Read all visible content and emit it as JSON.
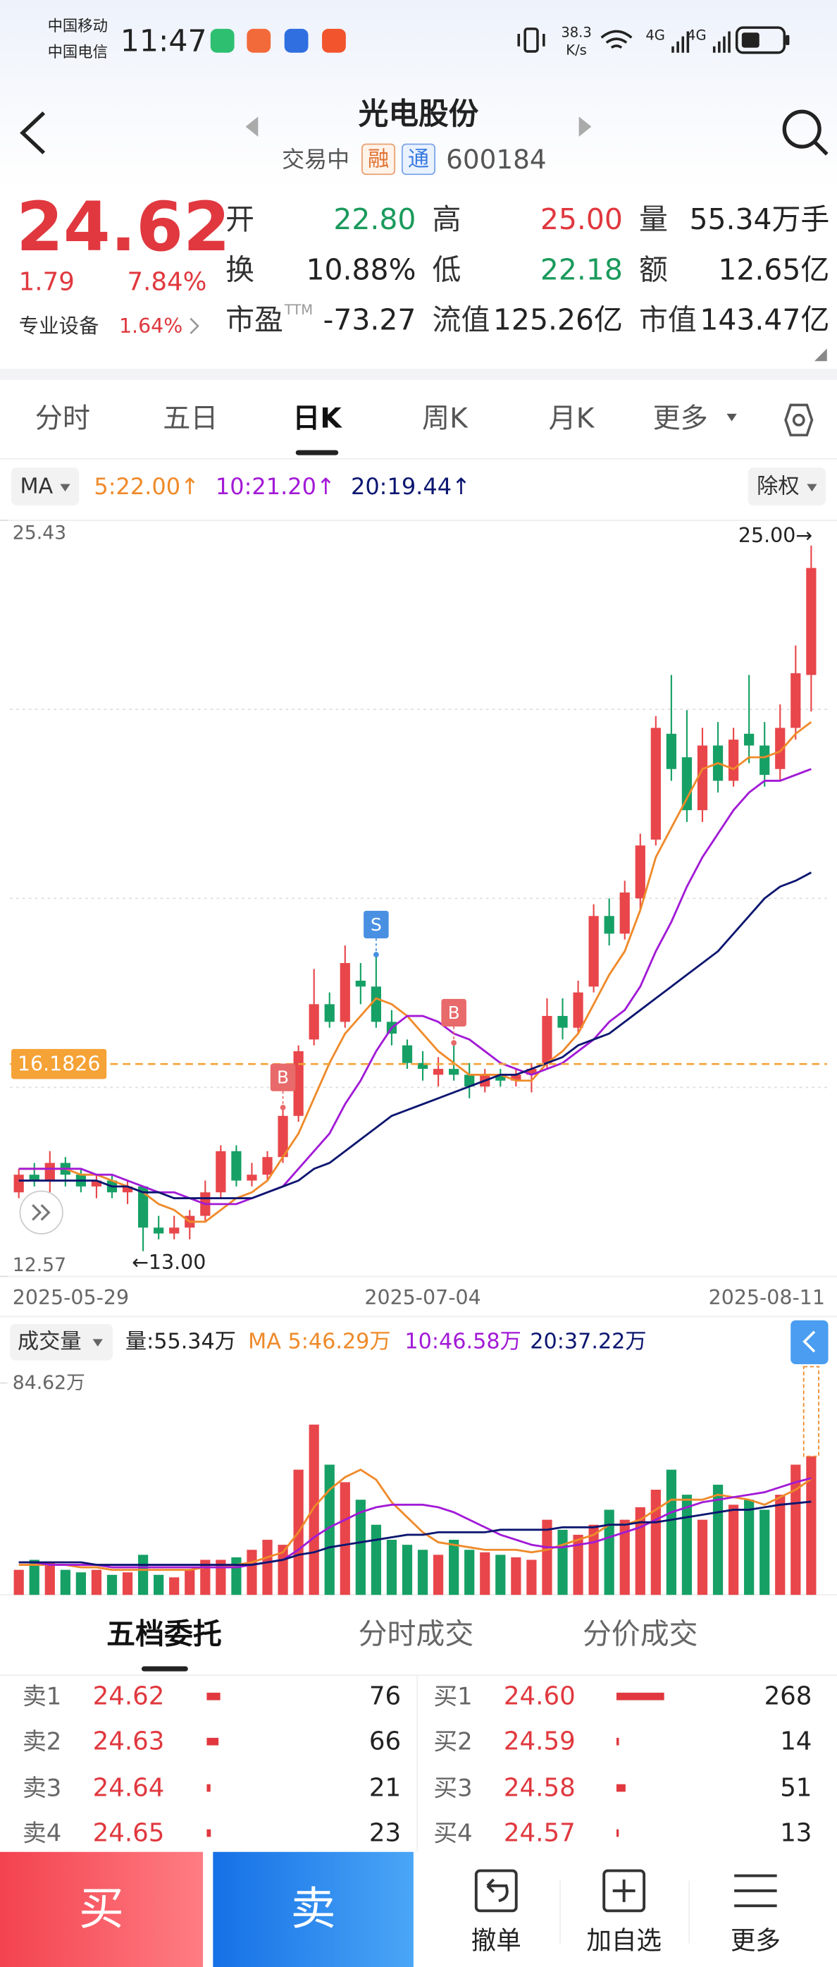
{
  "status_bar": {
    "carriers": [
      "中国移动",
      "中国电信"
    ],
    "time": "11:47",
    "net_speed": "38.3",
    "net_speed_unit": "K/s",
    "networks": [
      "4G",
      "4G"
    ]
  },
  "header": {
    "title": "光电股份",
    "status": "交易中",
    "badges": [
      "融",
      "通"
    ],
    "code": "600184"
  },
  "quote": {
    "price": "24.62",
    "change": "1.79",
    "change_percent": "7.84%",
    "sector": "专业设备",
    "sector_change": "1.64%",
    "color": "#e0383e",
    "fields": [
      {
        "label": "开",
        "value": "22.80",
        "color": "#1a9a5c"
      },
      {
        "label": "高",
        "value": "25.00",
        "color": "#e0383e"
      },
      {
        "label": "量",
        "value": "55.34万手",
        "color": "#222222"
      },
      {
        "label": "换",
        "value": "10.88%",
        "color": "#222222"
      },
      {
        "label": "低",
        "value": "22.18",
        "color": "#1a9a5c"
      },
      {
        "label": "额",
        "value": "12.65亿",
        "color": "#222222"
      },
      {
        "label": "市盈",
        "sup": "TTM",
        "value": "-73.27",
        "color": "#222222"
      },
      {
        "label": "流值",
        "value": "125.26亿",
        "color": "#222222"
      },
      {
        "label": "市值",
        "value": "143.47亿",
        "color": "#222222"
      }
    ]
  },
  "tabs": {
    "items": [
      "分时",
      "五日",
      "日K",
      "周K",
      "月K",
      "更多"
    ],
    "active": 2
  },
  "chart_data": [
    {
      "type": "candlestick",
      "indicator": "MA",
      "adjustment": "除权",
      "categories": [
        "2025-05-29",
        null,
        null,
        null,
        null,
        null,
        null,
        null,
        null,
        null,
        null,
        null,
        null,
        null,
        null,
        null,
        null,
        null,
        null,
        null,
        null,
        null,
        null,
        null,
        null,
        null,
        "2025-07-04",
        null,
        null,
        null,
        null,
        null,
        null,
        null,
        null,
        null,
        null,
        null,
        null,
        null,
        null,
        null,
        null,
        null,
        null,
        null,
        null,
        null,
        null,
        null,
        null,
        "2025-08-11"
      ],
      "open": [
        14.0,
        14.3,
        14.2,
        14.5,
        14.3,
        14.1,
        14.2,
        14.0,
        14.1,
        13.4,
        13.3,
        13.4,
        13.6,
        14.0,
        14.7,
        14.2,
        14.3,
        14.6,
        15.3,
        16.6,
        17.2,
        16.9,
        17.6,
        17.5,
        16.9,
        16.5,
        16.2,
        16.0,
        16.1,
        16.0,
        15.8,
        16.0,
        15.9,
        16.0,
        16.2,
        17.0,
        16.8,
        17.5,
        18.7,
        18.4,
        19.0,
        20.0,
        21.8,
        21.4,
        20.5,
        21.6,
        21.0,
        21.8,
        21.6,
        21.2,
        21.9,
        22.8
      ],
      "high": [
        14.4,
        14.5,
        14.7,
        14.6,
        14.4,
        14.3,
        14.3,
        14.2,
        14.1,
        13.6,
        13.6,
        13.7,
        14.2,
        14.8,
        14.8,
        14.5,
        14.7,
        15.4,
        16.5,
        17.8,
        17.4,
        18.2,
        17.9,
        18.0,
        17.1,
        16.6,
        16.4,
        16.3,
        16.5,
        16.2,
        16.1,
        16.1,
        16.1,
        16.2,
        17.3,
        17.3,
        17.6,
        18.9,
        19.0,
        19.3,
        20.1,
        22.1,
        22.8,
        22.2,
        21.9,
        22.0,
        21.9,
        22.8,
        22.0,
        22.3,
        23.3,
        25.0
      ],
      "low": [
        13.9,
        14.1,
        14.0,
        14.1,
        14.0,
        13.9,
        13.9,
        13.8,
        13.0,
        13.2,
        13.2,
        13.2,
        13.5,
        13.9,
        14.1,
        14.1,
        14.2,
        14.5,
        15.2,
        16.5,
        16.8,
        16.8,
        17.2,
        16.8,
        16.5,
        16.1,
        15.9,
        15.8,
        15.9,
        15.6,
        15.7,
        15.8,
        15.8,
        15.7,
        16.1,
        16.6,
        16.7,
        17.4,
        18.2,
        18.3,
        18.8,
        19.9,
        21.0,
        20.3,
        20.3,
        20.8,
        20.9,
        21.3,
        20.9,
        21.0,
        21.7,
        22.18
      ],
      "close": [
        14.3,
        14.2,
        14.5,
        14.3,
        14.1,
        14.2,
        14.0,
        14.1,
        13.4,
        13.3,
        13.4,
        13.6,
        14.0,
        14.7,
        14.2,
        14.3,
        14.6,
        15.3,
        16.4,
        17.2,
        16.9,
        17.9,
        17.5,
        16.9,
        16.7,
        16.2,
        16.1,
        16.1,
        16.0,
        15.8,
        16.0,
        15.9,
        16.0,
        16.1,
        17.0,
        16.8,
        17.4,
        18.7,
        18.4,
        19.1,
        19.9,
        21.9,
        21.2,
        20.5,
        21.6,
        21.0,
        21.7,
        21.6,
        21.1,
        21.9,
        22.83,
        24.62
      ],
      "up_color": "#e8464a",
      "down_color": "#16a065",
      "series": [
        {
          "name": "5:22.00↑",
          "color": "#ef8a2a",
          "values": [
            14.4,
            14.4,
            14.4,
            14.4,
            14.3,
            14.3,
            14.2,
            14.1,
            14.0,
            13.8,
            13.7,
            13.5,
            13.5,
            13.7,
            13.9,
            14.0,
            14.2,
            14.6,
            15.0,
            15.6,
            16.2,
            16.7,
            17.0,
            17.3,
            17.2,
            17.0,
            16.7,
            16.4,
            16.2,
            16.0,
            16.0,
            16.0,
            15.9,
            15.9,
            16.2,
            16.4,
            16.7,
            17.2,
            17.7,
            18.1,
            18.8,
            19.7,
            20.2,
            20.7,
            21.2,
            21.3,
            21.2,
            21.4,
            21.4,
            21.5,
            21.8,
            22.0
          ]
        },
        {
          "name": "10:21.20↑",
          "color": "#a21ad6",
          "values": [
            14.4,
            14.4,
            14.4,
            14.4,
            14.4,
            14.3,
            14.3,
            14.2,
            14.1,
            14.0,
            14.0,
            13.9,
            13.8,
            13.8,
            13.8,
            13.9,
            14.0,
            14.1,
            14.4,
            14.7,
            15.0,
            15.5,
            15.9,
            16.4,
            16.8,
            17.0,
            17.0,
            16.9,
            16.7,
            16.6,
            16.4,
            16.2,
            16.1,
            16.0,
            16.1,
            16.2,
            16.4,
            16.6,
            16.9,
            17.1,
            17.5,
            18.1,
            18.6,
            19.2,
            19.7,
            20.1,
            20.5,
            20.8,
            21.0,
            21.0,
            21.1,
            21.2
          ]
        },
        {
          "name": "20:19.44↑",
          "color": "#0c1670",
          "values": [
            14.2,
            14.2,
            14.2,
            14.2,
            14.2,
            14.2,
            14.1,
            14.1,
            14.0,
            14.0,
            13.9,
            13.9,
            13.9,
            13.9,
            13.9,
            13.9,
            14.0,
            14.1,
            14.2,
            14.4,
            14.5,
            14.7,
            14.9,
            15.1,
            15.3,
            15.4,
            15.5,
            15.6,
            15.7,
            15.8,
            15.9,
            16.0,
            16.0,
            16.1,
            16.2,
            16.3,
            16.5,
            16.6,
            16.7,
            16.9,
            17.1,
            17.3,
            17.5,
            17.7,
            17.9,
            18.1,
            18.4,
            18.7,
            19.0,
            19.2,
            19.3,
            19.44
          ]
        }
      ],
      "ylim": [
        12.57,
        25.43
      ],
      "yticks": [
        12.57,
        25.43
      ],
      "reference_line": {
        "value": 16.1826,
        "color": "#f5a236"
      },
      "annotations": {
        "max": "25.00→",
        "min": "←13.00"
      },
      "trade_marks": [
        {
          "label": "B",
          "index": 17,
          "color": "#e86a6a"
        },
        {
          "label": "S",
          "index": 23,
          "color": "#4a90e2"
        },
        {
          "label": "B",
          "index": 28,
          "color": "#e86a6a"
        }
      ]
    },
    {
      "type": "bar",
      "title": "成交量",
      "current": "量:55.34万",
      "values": [
        10,
        14,
        13,
        10,
        9,
        10,
        8,
        9,
        16,
        8,
        7,
        10,
        14,
        14,
        15,
        18,
        22,
        20,
        50,
        68,
        52,
        45,
        38,
        28,
        22,
        20,
        18,
        16,
        22,
        18,
        17,
        16,
        15,
        14,
        30,
        26,
        24,
        28,
        34,
        30,
        35,
        42,
        50,
        40,
        30,
        44,
        36,
        38,
        34,
        40,
        52,
        55.34
      ],
      "series": [
        {
          "name": "MA 5:46.29万",
          "color": "#ef8a2a",
          "values": [
            12,
            12,
            12,
            12,
            11,
            11,
            10,
            10,
            10,
            10,
            10,
            10,
            11,
            11,
            12,
            13,
            15,
            17,
            25,
            35,
            42,
            47,
            50,
            46,
            37,
            31,
            25,
            21,
            20,
            19,
            18,
            18,
            18,
            17,
            18,
            20,
            22,
            24,
            28,
            28,
            30,
            34,
            38,
            38,
            38,
            40,
            39,
            38,
            36,
            39,
            42,
            46.29
          ]
        },
        {
          "name": "10:46.58万",
          "color": "#a21ad6",
          "values": [
            13,
            13,
            12,
            12,
            12,
            12,
            11,
            11,
            11,
            11,
            11,
            11,
            11,
            11,
            11,
            12,
            13,
            14,
            18,
            23,
            27,
            30,
            33,
            35,
            36,
            36,
            36,
            35,
            33,
            30,
            27,
            24,
            22,
            20,
            19,
            19,
            20,
            21,
            23,
            25,
            27,
            30,
            33,
            35,
            37,
            38,
            39,
            40,
            41,
            43,
            45,
            46.58
          ]
        },
        {
          "name": "20:37.22万",
          "color": "#0c1670",
          "values": [
            13,
            13,
            13,
            13,
            13,
            12,
            12,
            12,
            12,
            12,
            12,
            12,
            12,
            12,
            12,
            12,
            13,
            14,
            16,
            17,
            19,
            20,
            21,
            22,
            23,
            24,
            24,
            25,
            25,
            25,
            25,
            26,
            26,
            26,
            26,
            27,
            27,
            27,
            28,
            28,
            29,
            29,
            30,
            31,
            32,
            33,
            34,
            34,
            35,
            36,
            36.6,
            37.22
          ]
        }
      ],
      "ylim": [
        0,
        84.62
      ],
      "yticks": [
        {
          "value": 84.62,
          "label": "84.62万"
        }
      ]
    }
  ],
  "order_book": {
    "tabs": [
      "五档委托",
      "分时成交",
      "分价成交"
    ],
    "active": 0,
    "color": "#e0383e",
    "sell": [
      {
        "label": "卖1",
        "price": "24.62",
        "volume": 76
      },
      {
        "label": "卖2",
        "price": "24.63",
        "volume": 66
      },
      {
        "label": "卖3",
        "price": "24.64",
        "volume": 21
      },
      {
        "label": "卖4",
        "price": "24.65",
        "volume": 23
      }
    ],
    "buy": [
      {
        "label": "买1",
        "price": "24.60",
        "volume": 268
      },
      {
        "label": "买2",
        "price": "24.59",
        "volume": 14
      },
      {
        "label": "买3",
        "price": "24.58",
        "volume": 51
      },
      {
        "label": "买4",
        "price": "24.57",
        "volume": 13
      }
    ]
  },
  "bottom_bar": {
    "buy": "买",
    "sell": "卖",
    "actions": [
      "撤单",
      "加自选",
      "更多"
    ]
  }
}
